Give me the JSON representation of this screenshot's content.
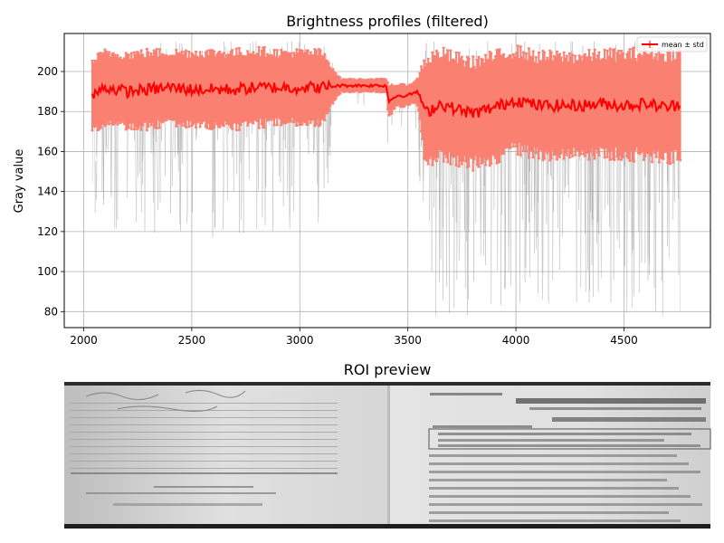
{
  "chart_data": [
    {
      "type": "line",
      "title": "Brightness profiles (filtered)",
      "xlabel": "",
      "ylabel": "Gray value",
      "xlim": [
        1910,
        4900
      ],
      "ylim": [
        72,
        219
      ],
      "grid": true,
      "x_ticks": [
        2000,
        2500,
        3000,
        3500,
        4000,
        4500
      ],
      "y_ticks": [
        80,
        100,
        120,
        140,
        160,
        180,
        200
      ],
      "legend": {
        "placement": "top-right",
        "entries": [
          "mean ± std"
        ]
      },
      "colors": {
        "mean": "#ff0000",
        "std_band": "#fa8072",
        "profiles": "#a0a0a0"
      },
      "series": [
        {
          "name": "mean ± std",
          "x": [
            2040,
            2100,
            2200,
            2300,
            2400,
            2500,
            2600,
            2700,
            2800,
            2900,
            3000,
            3100,
            3190,
            3250,
            3300,
            3400,
            3410,
            3450,
            3500,
            3540,
            3560,
            3580,
            3650,
            3700,
            3800,
            3900,
            4000,
            4100,
            4200,
            4300,
            4400,
            4500,
            4600,
            4700,
            4760
          ],
          "mean": [
            188,
            192,
            190,
            191,
            192,
            191,
            191,
            191,
            192,
            192,
            192,
            192,
            193,
            193,
            193,
            193,
            185,
            188,
            188,
            190,
            187,
            179,
            184,
            182,
            179,
            182,
            186,
            183,
            183,
            183,
            184,
            183,
            184,
            182,
            184
          ],
          "std": [
            17,
            17,
            18,
            18,
            17,
            18,
            18,
            18,
            18,
            17,
            17,
            17,
            3,
            3,
            3,
            3,
            8,
            5,
            5,
            5,
            14,
            26,
            25,
            25,
            25,
            25,
            24,
            24,
            24,
            24,
            24,
            25,
            25,
            26,
            26
          ]
        }
      ]
    },
    {
      "type": "image",
      "title": "ROI preview"
    }
  ]
}
